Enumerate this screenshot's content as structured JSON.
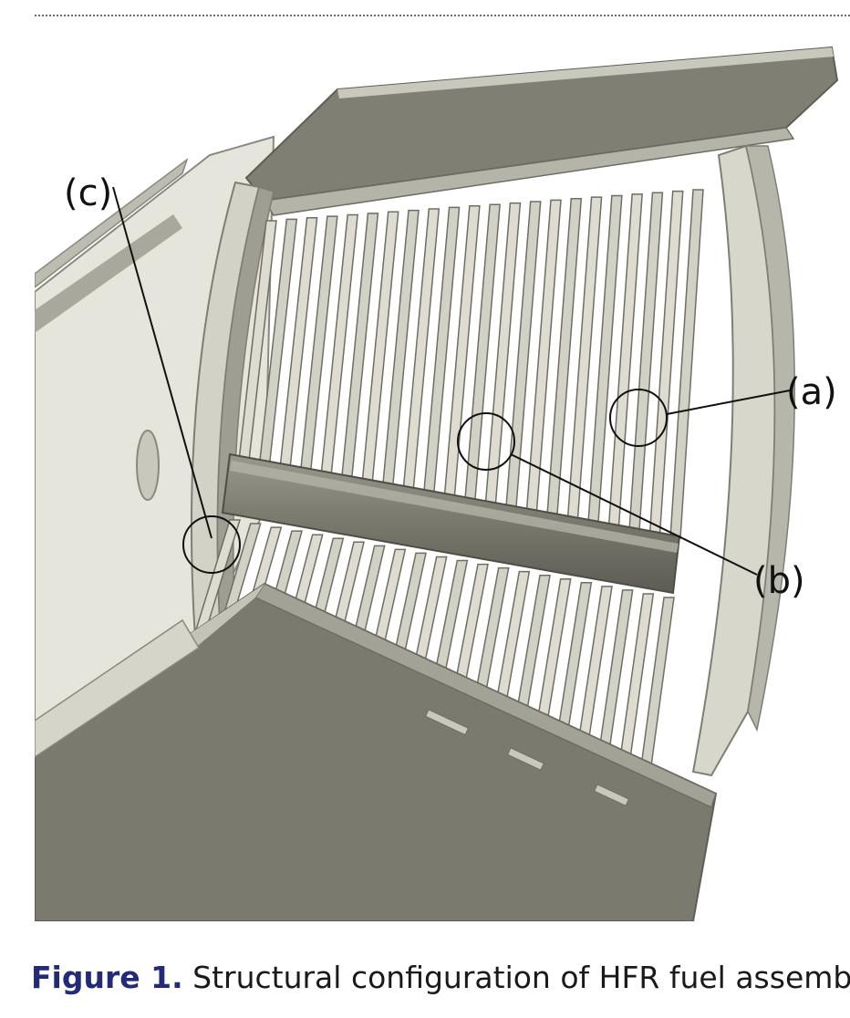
{
  "figure": {
    "labels": {
      "a": "(a)",
      "b": "(b)",
      "c": "(c)"
    },
    "colors": {
      "background": "#ffffff",
      "dark_plate": "#7b7a6f",
      "light_frame": "#dcdbd0",
      "mid_gray": "#a6a59a",
      "annotation": "#111111"
    }
  },
  "caption": {
    "label": "Figure 1.",
    "text": "Structural configuration of HFR fuel assembly.",
    "label_color": "#232a7a"
  }
}
